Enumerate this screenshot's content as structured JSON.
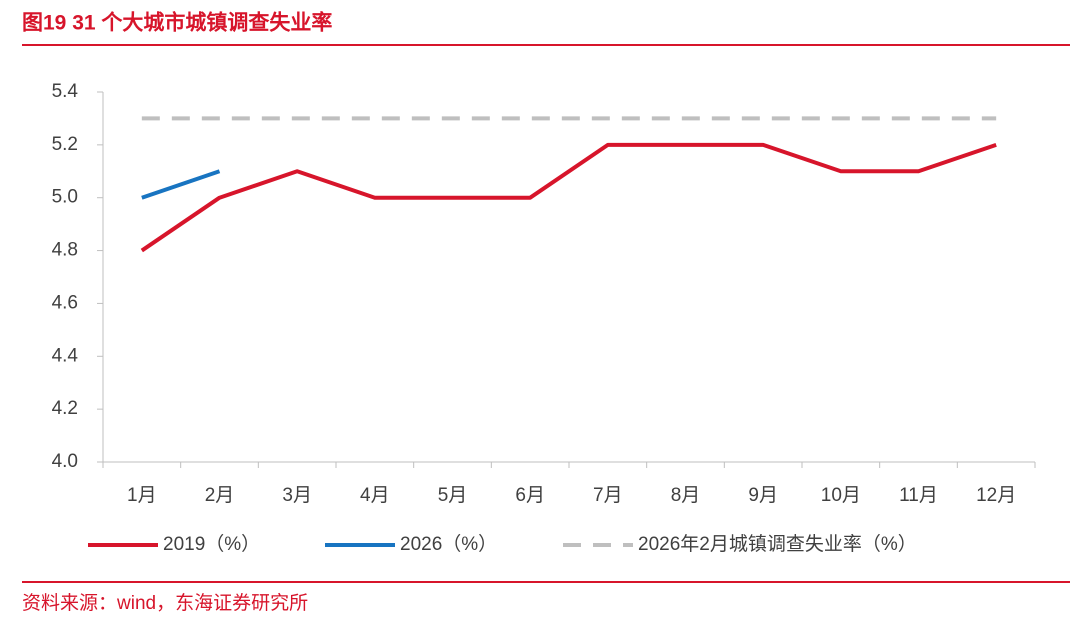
{
  "chart_data": {
    "type": "line",
    "title": "图19  31 个大城市城镇调查失业率",
    "source": "资料来源：wind，东海证券研究所",
    "categories": [
      "1月",
      "2月",
      "3月",
      "4月",
      "5月",
      "6月",
      "7月",
      "8月",
      "9月",
      "10月",
      "11月",
      "12月"
    ],
    "series": [
      {
        "name": "2019（%）",
        "color": "#d7152b",
        "dashed": false,
        "values": [
          4.8,
          5.0,
          5.1,
          5.0,
          5.0,
          5.0,
          5.2,
          5.2,
          5.2,
          5.1,
          5.1,
          5.2
        ]
      },
      {
        "name": "2026（%）",
        "color": "#1874c1",
        "dashed": false,
        "values": [
          5.0,
          5.1,
          null,
          null,
          null,
          null,
          null,
          null,
          null,
          null,
          null,
          null
        ]
      },
      {
        "name": "2026年2月城镇调查失业率（%）",
        "color": "#bfbfbf",
        "dashed": true,
        "values": [
          5.3,
          5.3,
          5.3,
          5.3,
          5.3,
          5.3,
          5.3,
          5.3,
          5.3,
          5.3,
          5.3,
          5.3
        ]
      }
    ],
    "ylim": [
      4.0,
      5.4
    ],
    "yticks": [
      {
        "value": 4.0,
        "label": "4.0"
      },
      4.2,
      4.4,
      4.6,
      4.8,
      {
        "value": 5.0,
        "label": "5.0"
      },
      5.2,
      5.4
    ],
    "grid": false,
    "legend": "bottom"
  }
}
